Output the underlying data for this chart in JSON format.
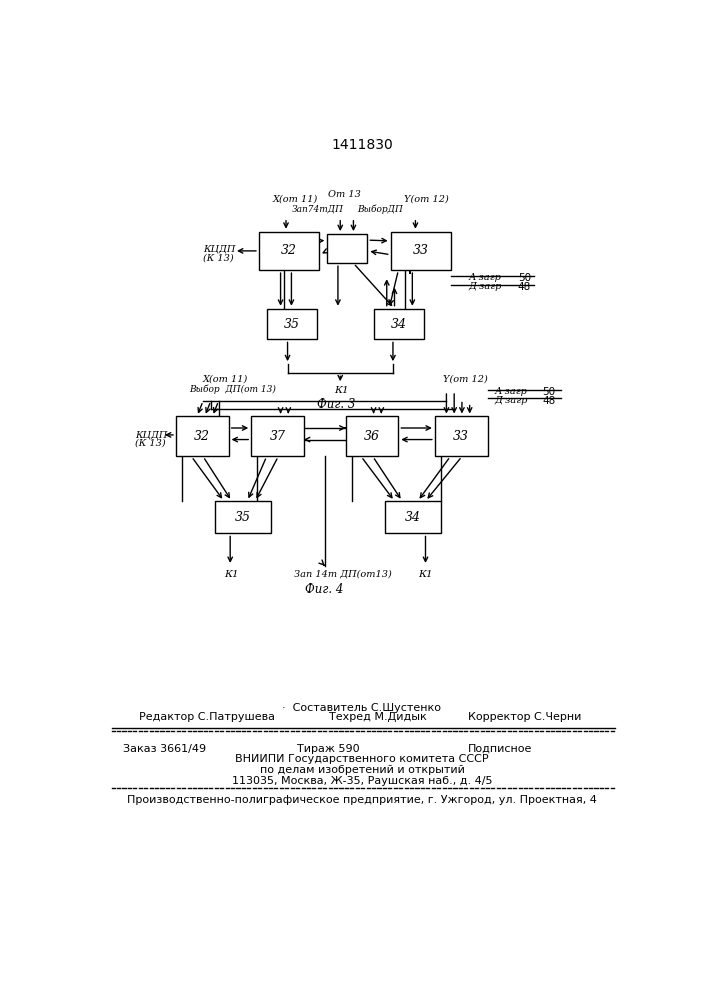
{
  "title": "1411830",
  "background_color": "#ffffff",
  "line_color": "#000000",
  "text_color": "#000000",
  "footer_sestavitel": "Составитель С.Шустенко",
  "footer_redaktor": "Редактор С.Патрушева",
  "footer_tehred": "Техред М.Дидык",
  "footer_korrektor": "Корректор С.Черни",
  "footer_zakaz": "Заказ 3661/49",
  "footer_tiraz": "Тираж 590",
  "footer_podpisnoe": "Подписное",
  "footer_vniipи": "ВНИИПИ Государственного комитета СССР",
  "footer_po_delam": "по делам изобретений и открытий",
  "footer_address": "113035, Москва, Ж-35, Раушская наб., д. 4/5",
  "footer_factory": "Производственно-полиграфическое предприятие, г. Ужгород, ул. Проектная, 4"
}
